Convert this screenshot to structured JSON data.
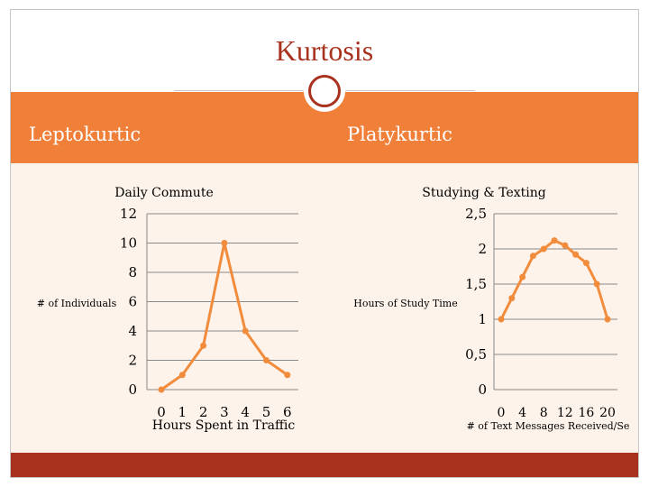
{
  "slide": {
    "title": "Kurtosis",
    "left_heading": "Leptokurtic",
    "right_heading": "Platykurtic",
    "colors": {
      "accent": "#f07f39",
      "title": "#a8321e",
      "panel": "#fef3ea",
      "line": "#f28c3d"
    }
  },
  "chart_data": [
    {
      "type": "line",
      "title": "Daily Commute",
      "xlabel": "Hours Spent in Traffic",
      "ylabel": "# of Individuals",
      "x": [
        0,
        1,
        2,
        3,
        4,
        5,
        6
      ],
      "x_tick_labels": [
        "0",
        "1",
        "2",
        "3",
        "4",
        "5",
        "6"
      ],
      "y_tick_labels": [
        "0",
        "2",
        "4",
        "6",
        "8",
        "10",
        "12"
      ],
      "series": [
        {
          "values": [
            0,
            1,
            3,
            10,
            4,
            2,
            1
          ]
        }
      ],
      "ylim": [
        0,
        12
      ],
      "grid": "horizontal"
    },
    {
      "type": "line",
      "title": "Studying & Texting",
      "xlabel": "# of Text Messages Received/Se",
      "ylabel": "Hours of Study Time",
      "x": [
        0,
        2,
        4,
        6,
        8,
        10,
        12,
        14,
        16,
        18,
        20
      ],
      "x_tick_labels": [
        "0",
        "4",
        "8",
        "12",
        "16",
        "20"
      ],
      "y_tick_labels": [
        "0",
        "0,5",
        "1",
        "1,5",
        "2",
        "2,5"
      ],
      "series": [
        {
          "values": [
            1,
            1.3,
            1.6,
            1.9,
            2.0,
            2.12,
            2.05,
            1.92,
            1.8,
            1.5,
            1
          ]
        }
      ],
      "ylim": [
        0,
        2.5
      ],
      "grid": "horizontal"
    }
  ]
}
